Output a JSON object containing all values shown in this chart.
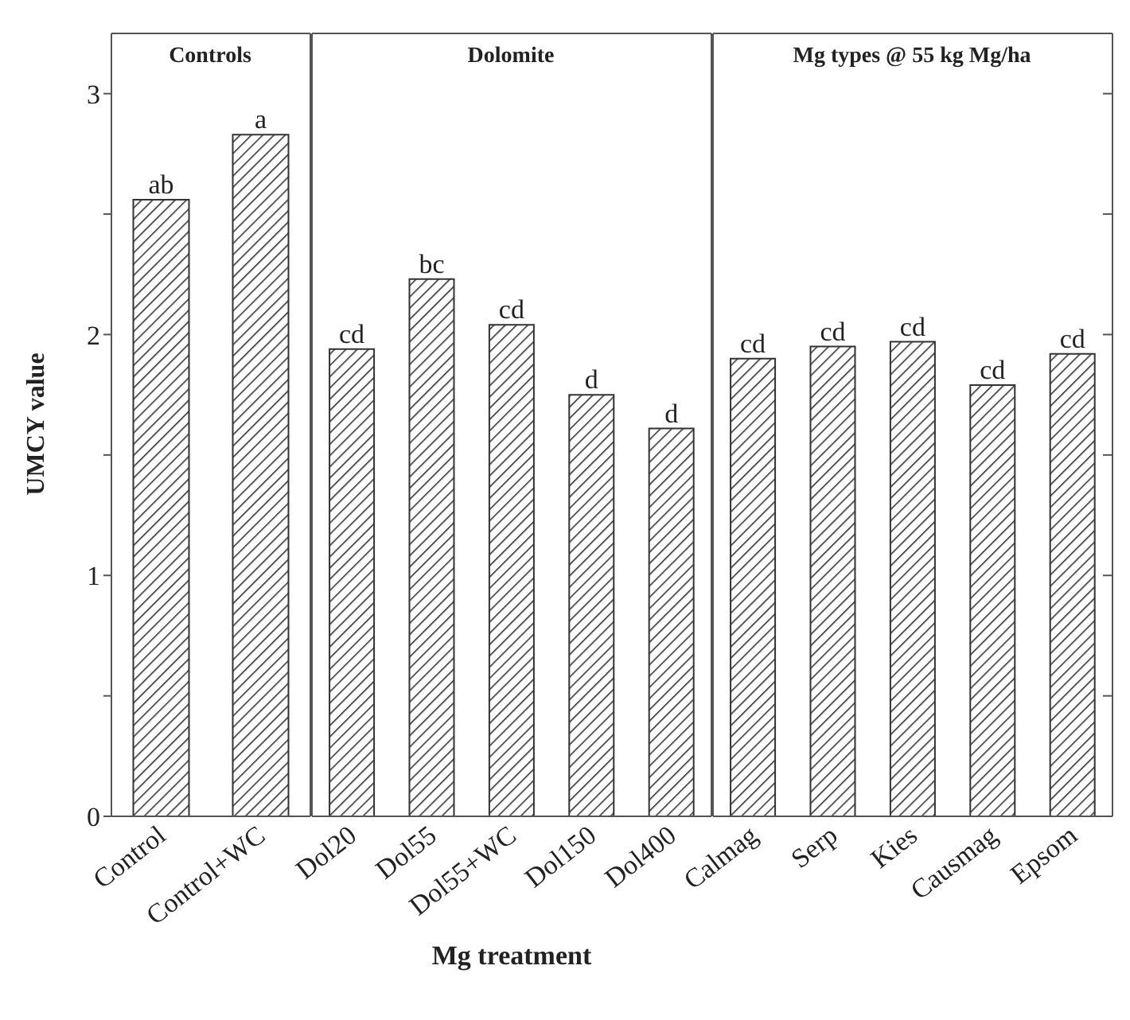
{
  "chart_data": [
    {
      "type": "bar",
      "title": "Controls",
      "ylabel": "UMCY value",
      "categories": [
        "Control",
        "Control+WC"
      ],
      "values": [
        2.56,
        2.83
      ],
      "color": "#333333",
      "value_labels": [
        "ab",
        "a"
      ],
      "ylim": [
        0,
        3.25
      ],
      "yticks": [
        0,
        {
          "value": 0.5,
          "label": null
        },
        1,
        {
          "value": 1.5,
          "label": null
        },
        2,
        {
          "value": 2.5,
          "label": null
        },
        3
      ]
    },
    {
      "type": "bar",
      "title": "Dolomite",
      "xlabel": "Mg treatment",
      "categories": [
        "Dol20",
        "Dol55",
        "Dol55+WC",
        "Dol150",
        "Dol400"
      ],
      "values": [
        1.94,
        2.23,
        2.04,
        1.75,
        1.61
      ],
      "color": "#333333",
      "value_labels": [
        "cd",
        "bc",
        "cd",
        "d",
        "d"
      ],
      "ylim": [
        0,
        3.25
      ],
      "tick_labels": "x"
    },
    {
      "type": "bar",
      "title": "Mg types @ 55 kg Mg/ha",
      "categories": [
        "Calmag",
        "Serp",
        "Kies",
        "Causmag",
        "Epsom"
      ],
      "values": [
        1.9,
        1.95,
        1.97,
        1.79,
        1.92
      ],
      "color": "#333333",
      "value_labels": [
        "cd",
        "cd",
        "cd",
        "cd",
        "cd"
      ],
      "ylim": [
        0,
        3.25
      ],
      "yticks": [
        {
          "value": 0,
          "label": null
        },
        {
          "value": 0.5,
          "label": null
        },
        {
          "value": 1,
          "label": null
        },
        {
          "value": 1.5,
          "label": null
        },
        {
          "value": 2,
          "label": null
        },
        {
          "value": 2.5,
          "label": null
        },
        {
          "value": 3,
          "label": null
        }
      ],
      "tick_labels": "x"
    }
  ]
}
